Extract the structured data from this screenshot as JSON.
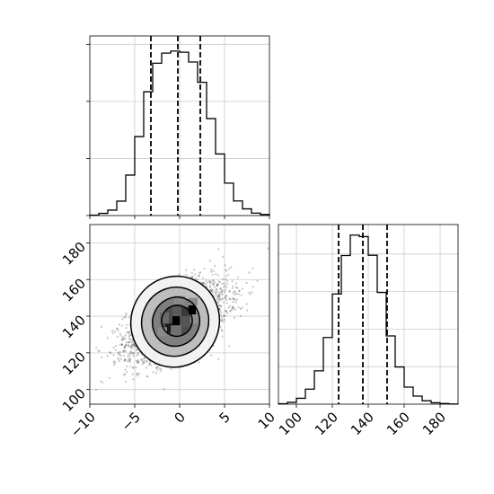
{
  "chart_data": [
    {
      "type": "histogram",
      "panel": "top-left",
      "variable": "x",
      "bins": {
        "edges": [
          -10,
          -9,
          -8,
          -7,
          -6,
          -5,
          -4,
          -3,
          -2,
          -1,
          0,
          1,
          2,
          3,
          4,
          5,
          6,
          7,
          8,
          9,
          10
        ],
        "heights": [
          3,
          14,
          35,
          93,
          261,
          509,
          798,
          982,
          1047,
          1060,
          1053,
          990,
          859,
          625,
          397,
          209,
          94,
          43,
          16,
          7
        ],
        "max_height": 1100
      },
      "quantile_lines": [
        -3.2,
        -0.2,
        2.3
      ],
      "xlim": [
        -10,
        10
      ],
      "ytick_values": [
        0,
        368,
        736,
        1104
      ],
      "grid": true
    },
    {
      "type": "histogram",
      "panel": "bottom-right",
      "variable": "y",
      "bins": {
        "edges": [
          90,
          95,
          100,
          105,
          110,
          115,
          120,
          125,
          130,
          135,
          140,
          145,
          150,
          155,
          160,
          165,
          170,
          175,
          180,
          185,
          190
        ],
        "heights": [
          3,
          12,
          38,
          97,
          215,
          430,
          710,
          958,
          1090,
          1080,
          960,
          720,
          440,
          240,
          110,
          52,
          22,
          9,
          4,
          1
        ],
        "max_height": 1100
      },
      "quantile_lines": [
        123.5,
        137,
        150.5
      ],
      "xlim": [
        90,
        190
      ],
      "xticks": [
        "100",
        "120",
        "140",
        "160",
        "180"
      ],
      "grid": true
    },
    {
      "type": "scatter",
      "panel": "bottom-left",
      "variables": [
        "x",
        "y"
      ],
      "xlim": [
        -10,
        10
      ],
      "ylim": [
        92,
        190
      ],
      "xticks": [
        "−10",
        "−5",
        "0",
        "5",
        "10"
      ],
      "yticks": [
        "100",
        "120",
        "140",
        "160",
        "180"
      ],
      "samples": {
        "count": 3000,
        "x_mean": -0.3,
        "y_mean": 137,
        "x_sd": 2.8,
        "y_sd": 10.5,
        "correlation": 0.55
      },
      "contour_levels": [
        {
          "level": 0.118,
          "center": [
            -0.5,
            137
          ],
          "rx": 4.9,
          "ry": 25
        },
        {
          "level": 0.393,
          "center": [
            -0.5,
            137
          ],
          "rx": 3.7,
          "ry": 19
        },
        {
          "level": 0.675,
          "center": [
            -0.4,
            137
          ],
          "rx": 2.6,
          "ry": 13.5
        },
        {
          "level": 0.865,
          "center": [
            -0.3,
            137.5
          ],
          "rx": 1.7,
          "ry": 8.5
        }
      ],
      "density_cells": [
        {
          "x": [
            1.0,
            1.8
          ],
          "y": [
            141,
            146
          ],
          "shade": "#000000"
        },
        {
          "x": [
            -0.8,
            0.0
          ],
          "y": [
            135,
            140
          ],
          "shade": "#000000"
        },
        {
          "x": [
            -1.6,
            -0.8
          ],
          "y": [
            131,
            136
          ],
          "shade": "#1a1a1a"
        },
        {
          "x": [
            0.0,
            1.0
          ],
          "y": [
            140,
            145
          ],
          "shade": "#3a3a3a"
        },
        {
          "x": [
            -0.8,
            0.2
          ],
          "y": [
            140,
            145
          ],
          "shade": "#5a5a5a"
        },
        {
          "x": [
            -2.2,
            -1.2
          ],
          "y": [
            136,
            142
          ],
          "shade": "#6a6a6a"
        },
        {
          "x": [
            0.2,
            1.2
          ],
          "y": [
            134,
            140
          ],
          "shade": "#555555"
        },
        {
          "x": [
            -1.0,
            0.2
          ],
          "y": [
            129,
            135
          ],
          "shade": "#707070"
        },
        {
          "x": [
            1.0,
            2.0
          ],
          "y": [
            146,
            150
          ],
          "shade": "#8a8a8a"
        },
        {
          "x": [
            -0.6,
            0.6
          ],
          "y": [
            146,
            151
          ],
          "shade": "#8a8a8a"
        },
        {
          "x": [
            -2.4,
            -1.4
          ],
          "y": [
            129,
            134
          ],
          "shade": "#8a8a8a"
        },
        {
          "x": [
            1.2,
            2.2
          ],
          "y": [
            136,
            141
          ],
          "shade": "#909090"
        }
      ],
      "grid": true
    }
  ]
}
